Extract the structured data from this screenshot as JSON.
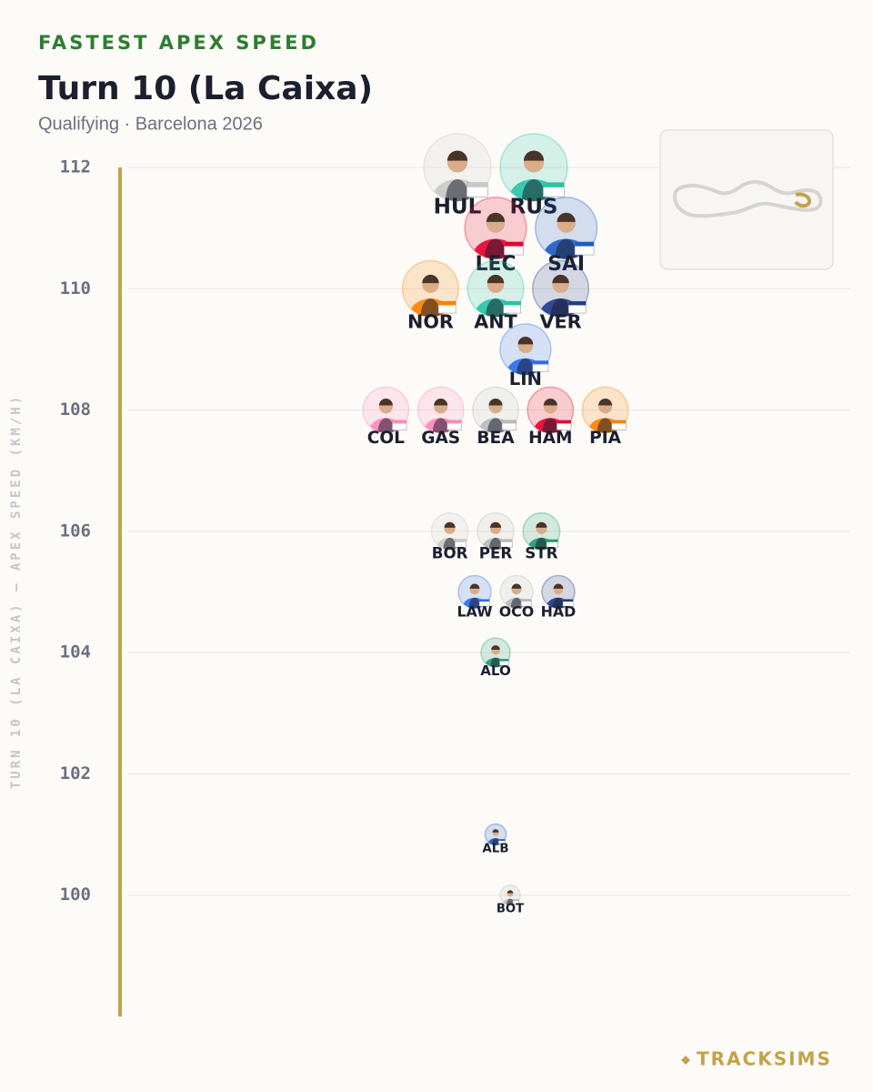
{
  "chart_data": {
    "type": "beeswarm",
    "eyebrow": "FASTEST APEX SPEED",
    "title": "Turn 10 (La Caixa)",
    "subtitle": "Qualifying · Barcelona 2026",
    "y_label": "TURN 10 (LA CAIXA) — APEX SPEED (KM/H)",
    "ylim": [
      98,
      112
    ],
    "yticks": [
      100,
      102,
      104,
      106,
      108,
      110,
      112
    ],
    "grid": true,
    "categories": [
      "HUL",
      "RUS",
      "LEC",
      "SAI",
      "NOR",
      "ANT",
      "VER",
      "LIN",
      "COL",
      "GAS",
      "BEA",
      "HAM",
      "PIA",
      "BOR",
      "PER",
      "STR",
      "LAW",
      "OCO",
      "HAD",
      "ALO",
      "ALB",
      "BOT"
    ],
    "values": [
      112,
      112,
      111,
      111,
      110,
      110,
      110,
      109,
      108,
      108,
      108,
      108,
      108,
      106,
      106,
      106,
      105,
      105,
      105,
      104,
      101,
      100
    ],
    "colors": [
      "#c9c9c9",
      "#27c4a8",
      "#e8002d",
      "#1e5bc6",
      "#ff8000",
      "#27c4a8",
      "#1e3a8a",
      "#2b6cf0",
      "#ff87bc",
      "#ff87bc",
      "#b6babd",
      "#e8002d",
      "#ff8000",
      "#c9c9c9",
      "#b6babd",
      "#229971",
      "#2b6cf0",
      "#b6babd",
      "#1e3a8a",
      "#229971",
      "#1e5bc6",
      "#b6babd"
    ]
  },
  "brand": "TRACKSIMS"
}
